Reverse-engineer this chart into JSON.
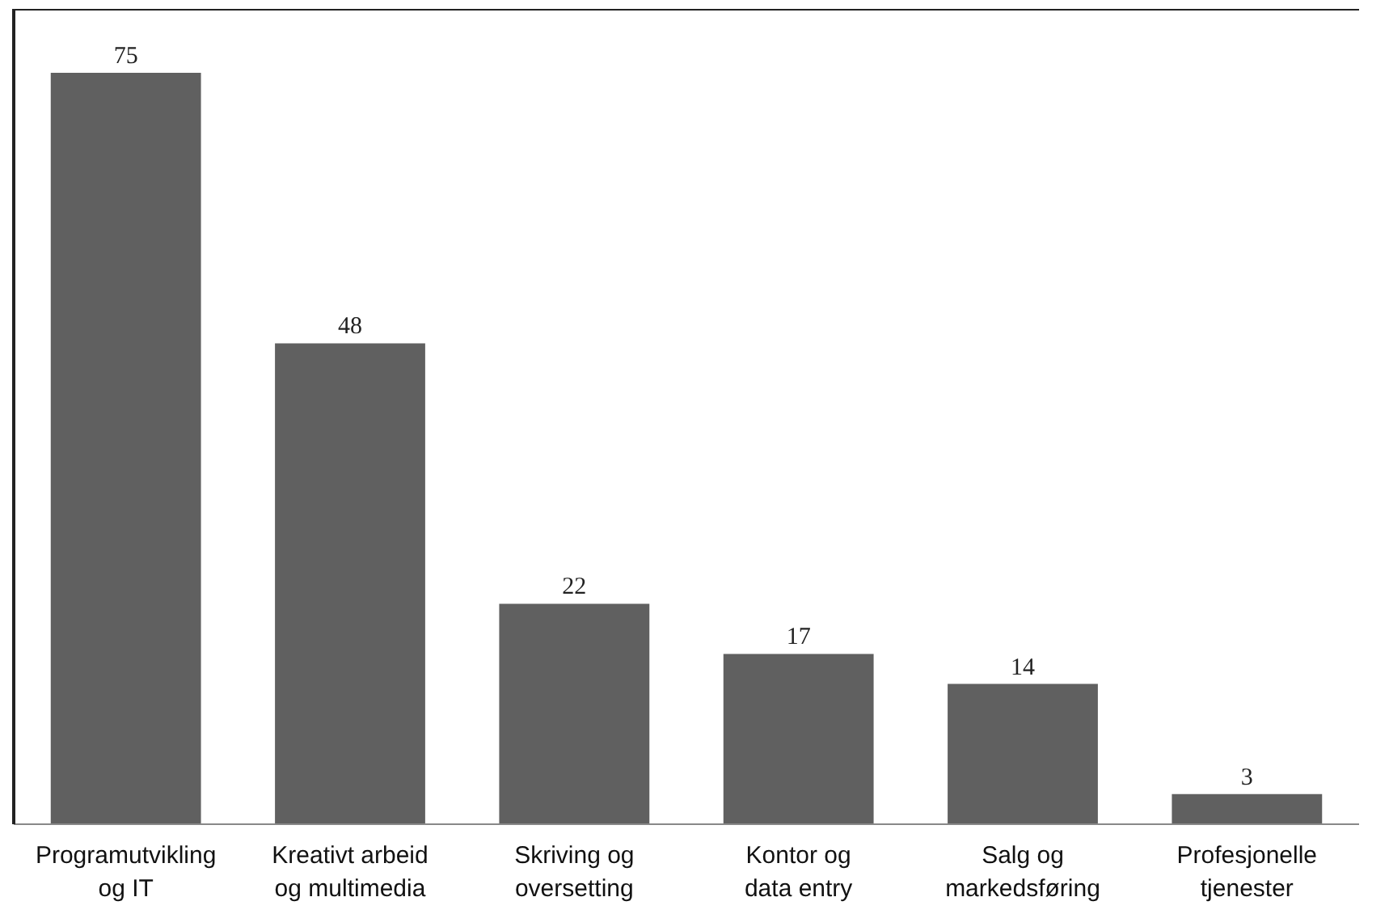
{
  "chart_data": {
    "type": "bar",
    "categories": [
      "Programutvikling\nog IT",
      "Kreativt arbeid\nog multimedia",
      "Skriving og\noversetting",
      "Kontor og\ndata entry",
      "Salg og\nmarkedsføring",
      "Profesjonelle\ntjenester"
    ],
    "values": [
      75,
      48,
      22,
      17,
      14,
      3
    ],
    "color": "#606060",
    "data_labels": true,
    "grid": false
  }
}
